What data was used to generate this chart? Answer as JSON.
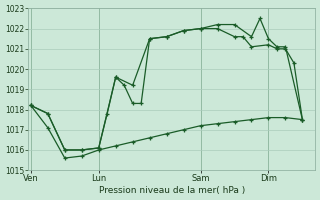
{
  "bg_color": "#cce8d8",
  "grid_color": "#aaccbb",
  "line_color": "#1a5c28",
  "xlabel": "Pression niveau de la mer( hPa )",
  "ylim": [
    1015,
    1023
  ],
  "yticks": [
    1015,
    1016,
    1017,
    1018,
    1019,
    1020,
    1021,
    1022,
    1023
  ],
  "xtick_labels": [
    "Ven",
    "Lun",
    "Sam",
    "Dim"
  ],
  "xtick_positions": [
    0,
    8,
    20,
    28
  ],
  "xlim": [
    -0.3,
    33.5
  ],
  "s1x": [
    0,
    2,
    4,
    6,
    8,
    10,
    12,
    14,
    16,
    18,
    20,
    22,
    24,
    26,
    28,
    30,
    32
  ],
  "s1y": [
    1018.2,
    1017.1,
    1015.6,
    1015.7,
    1016.0,
    1016.2,
    1016.4,
    1016.6,
    1016.8,
    1017.0,
    1017.2,
    1017.3,
    1017.4,
    1017.5,
    1017.6,
    1017.6,
    1017.5
  ],
  "s2x": [
    0,
    2,
    4,
    6,
    8,
    9,
    10,
    11,
    12,
    13,
    14,
    16,
    18,
    20,
    22,
    24,
    25,
    26,
    28,
    29,
    30,
    31,
    32
  ],
  "s2y": [
    1018.2,
    1017.8,
    1016.0,
    1016.0,
    1016.1,
    1017.8,
    1019.6,
    1019.2,
    1018.3,
    1018.3,
    1021.5,
    1021.6,
    1021.9,
    1022.0,
    1022.0,
    1021.6,
    1021.6,
    1021.1,
    1021.2,
    1021.0,
    1021.0,
    1020.3,
    1017.5
  ],
  "s3x": [
    0,
    2,
    4,
    6,
    8,
    10,
    12,
    14,
    16,
    18,
    20,
    22,
    24,
    26,
    27,
    28,
    29,
    30,
    32
  ],
  "s3y": [
    1018.2,
    1017.8,
    1016.0,
    1016.0,
    1016.1,
    1019.6,
    1019.2,
    1021.5,
    1021.6,
    1021.9,
    1022.0,
    1022.2,
    1022.2,
    1021.6,
    1022.5,
    1021.5,
    1021.1,
    1021.1,
    1017.5
  ]
}
